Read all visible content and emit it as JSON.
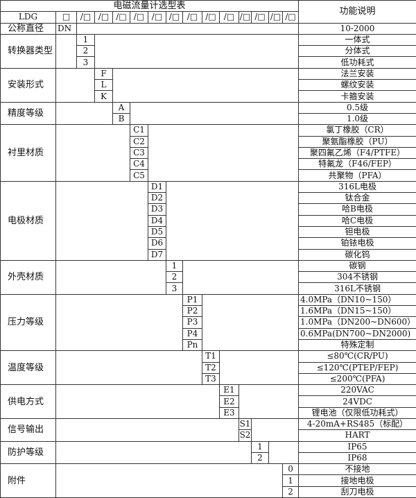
{
  "title": "电磁流量计选型表",
  "function_header": "功能说明",
  "model_prefix": "LDG",
  "header_first_slot": "□",
  "header_slots": [
    "/□",
    "/□",
    "/□",
    "/□",
    "/□",
    "/□",
    "/□",
    "/□",
    "/□",
    "/□",
    "/□",
    "/□",
    "/□"
  ],
  "nominal": {
    "label": "公称直径",
    "code": "DN",
    "desc": "10-2000"
  },
  "groups": [
    {
      "label": "转换器类型",
      "col": 0,
      "items": [
        {
          "code": "1",
          "desc": "一体式"
        },
        {
          "code": "2",
          "desc": "分体式"
        },
        {
          "code": "3",
          "desc": "低功耗式"
        }
      ]
    },
    {
      "label": "安装形式",
      "col": 1,
      "items": [
        {
          "code": "F",
          "desc": "法兰安装"
        },
        {
          "code": "L",
          "desc": "螺纹安装"
        },
        {
          "code": "K",
          "desc": "卡箍安装"
        }
      ]
    },
    {
      "label": "精度等级",
      "col": 2,
      "items": [
        {
          "code": "A",
          "desc": "0.5级"
        },
        {
          "code": "B",
          "desc": "1.0级"
        }
      ]
    },
    {
      "label": "衬里材质",
      "col": 3,
      "items": [
        {
          "code": "C1",
          "desc": "氯丁橡胶（CR）"
        },
        {
          "code": "C2",
          "desc": "聚氨酯橡胶（PU）"
        },
        {
          "code": "C3",
          "desc": "聚四氟乙烯（F4/PTFE）"
        },
        {
          "code": "C4",
          "desc": "特氟龙（F46/FEP）"
        },
        {
          "code": "C5",
          "desc": "共聚物（PFA）"
        }
      ]
    },
    {
      "label": "电极材质",
      "col": 4,
      "items": [
        {
          "code": "D1",
          "desc": "316L电极"
        },
        {
          "code": "D2",
          "desc": "钛合金"
        },
        {
          "code": "D3",
          "desc": "哈B电极"
        },
        {
          "code": "D4",
          "desc": "哈C电极"
        },
        {
          "code": "D5",
          "desc": "钽电极"
        },
        {
          "code": "D6",
          "desc": "铂铱电极"
        },
        {
          "code": "D7",
          "desc": "碳化钨"
        }
      ]
    },
    {
      "label": "外壳材质",
      "col": 5,
      "items": [
        {
          "code": "1",
          "desc": "碳钢"
        },
        {
          "code": "2",
          "desc": "304不锈钢"
        },
        {
          "code": "3",
          "desc": "316L不锈钢"
        }
      ]
    },
    {
      "label": "压力等级",
      "col": 6,
      "items": [
        {
          "code": "P1",
          "desc": "4.0MPa（DN10~150）",
          "left": true
        },
        {
          "code": "P2",
          "desc": "1.6MPa（DN15~150）",
          "left": true
        },
        {
          "code": "P3",
          "desc": "1.0MPa（DN200~DN600）",
          "left": true
        },
        {
          "code": "P4",
          "desc": "0.6MPa(DN700~DN2000)",
          "left": true
        },
        {
          "code": "Pn",
          "desc": "特殊定制"
        }
      ]
    },
    {
      "label": "温度等级",
      "col": 7,
      "items": [
        {
          "code": "T1",
          "desc": "≤80℃(CR/PU)"
        },
        {
          "code": "T2",
          "desc": "≤120℃(PTEP/FEP)"
        },
        {
          "code": "T3",
          "desc": "≤200℃(PFA)"
        }
      ]
    },
    {
      "label": "供电方式",
      "col": 8,
      "items": [
        {
          "code": "E1",
          "desc": "220VAC"
        },
        {
          "code": "E2",
          "desc": "24VDC"
        },
        {
          "code": "E3",
          "desc": "锂电池（仅限低功耗式）"
        }
      ]
    },
    {
      "label": "信号输出",
      "col": 9,
      "items": [
        {
          "code": "S1",
          "desc": "4-20mA+RS485（标配）"
        },
        {
          "code": "S2",
          "desc": "HART"
        }
      ]
    },
    {
      "label": "防护等级",
      "col": 10,
      "items": [
        {
          "code": "1",
          "desc": "IP65"
        },
        {
          "code": "2",
          "desc": "IP68"
        }
      ]
    },
    {
      "label": "附件",
      "col": 12,
      "items": [
        {
          "code": "0",
          "desc": "不接地"
        },
        {
          "code": "1",
          "desc": "接地电极"
        },
        {
          "code": "2",
          "desc": "刮刀电极"
        }
      ]
    }
  ]
}
